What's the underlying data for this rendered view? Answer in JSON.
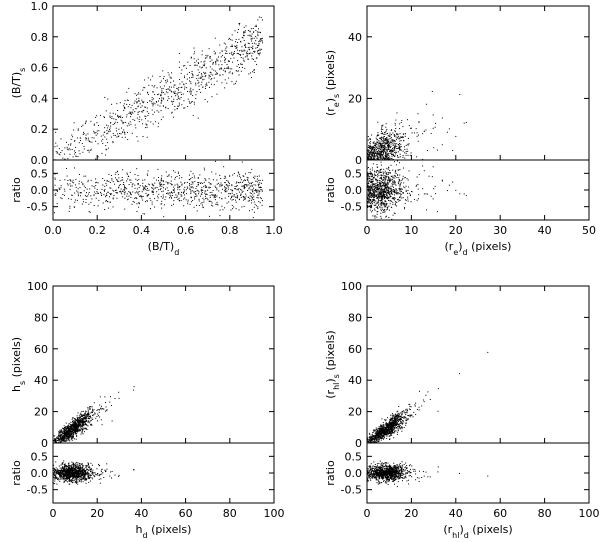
{
  "chart_data": [
    {
      "type": "scatter",
      "panel": "top-left",
      "xlabel": "(B/T)_d",
      "ylabel_top": "(B/T)_s",
      "ylabel_bottom": "ratio",
      "xlim": [
        0,
        1.0
      ],
      "ylim_top": [
        0,
        1.0
      ],
      "ylim_bottom": [
        -0.9,
        0.9
      ],
      "xticks": [
        "0.0",
        "0.2",
        "0.4",
        "0.6",
        "0.8",
        "1.0"
      ],
      "yticks_top": [
        "0.0",
        "0.2",
        "0.4",
        "0.6",
        "0.8",
        "1.0"
      ],
      "yticks_bottom": [
        "0.5",
        "0.0",
        "-0.5"
      ],
      "trend": {
        "slope": 0.82,
        "scatter": 0.08
      },
      "n_points": 900
    },
    {
      "type": "scatter",
      "panel": "top-right",
      "xlabel": "(r_e)_d (pixels)",
      "ylabel_top": "(r_e)_s (pixels)",
      "ylabel_bottom": "ratio",
      "xlim": [
        0,
        50
      ],
      "ylim_top": [
        0,
        50
      ],
      "ylim_bottom": [
        -0.9,
        0.9
      ],
      "xticks": [
        "0",
        "10",
        "20",
        "30",
        "40",
        "50"
      ],
      "yticks_top": [
        "0",
        "20",
        "40"
      ],
      "yticks_bottom": [
        "0.5",
        "0.0",
        "-0.5"
      ],
      "trend": {
        "slope": 0.7,
        "scatter": 3.0
      },
      "n_points": 900
    },
    {
      "type": "scatter",
      "panel": "bottom-left",
      "xlabel": "h_d (pixels)",
      "ylabel_top": "h_s (pixels)",
      "ylabel_bottom": "ratio",
      "xlim": [
        0,
        100
      ],
      "ylim_top": [
        0,
        100
      ],
      "ylim_bottom": [
        -0.9,
        0.9
      ],
      "xticks": [
        "0",
        "20",
        "40",
        "60",
        "80",
        "100"
      ],
      "yticks_top": [
        "0",
        "20",
        "40",
        "60",
        "80",
        "100"
      ],
      "yticks_bottom": [
        "0.5",
        "0.0",
        "-0.5"
      ],
      "trend": {
        "slope": 1.0,
        "scatter": 1.8
      },
      "n_points": 1000
    },
    {
      "type": "scatter",
      "panel": "bottom-right",
      "xlabel": "(r_hl)_d (pixels)",
      "ylabel_top": "(r_hl)_s (pixels)",
      "ylabel_bottom": "ratio",
      "xlim": [
        0,
        100
      ],
      "ylim_top": [
        0,
        100
      ],
      "ylim_bottom": [
        -0.9,
        0.9
      ],
      "xticks": [
        "0",
        "20",
        "40",
        "60",
        "80",
        "100"
      ],
      "yticks_top": [
        "0",
        "20",
        "40",
        "60",
        "80",
        "100"
      ],
      "yticks_bottom": [
        "0.5",
        "0.0",
        "-0.5"
      ],
      "trend": {
        "slope": 1.0,
        "scatter": 1.8
      },
      "n_points": 1000
    }
  ]
}
